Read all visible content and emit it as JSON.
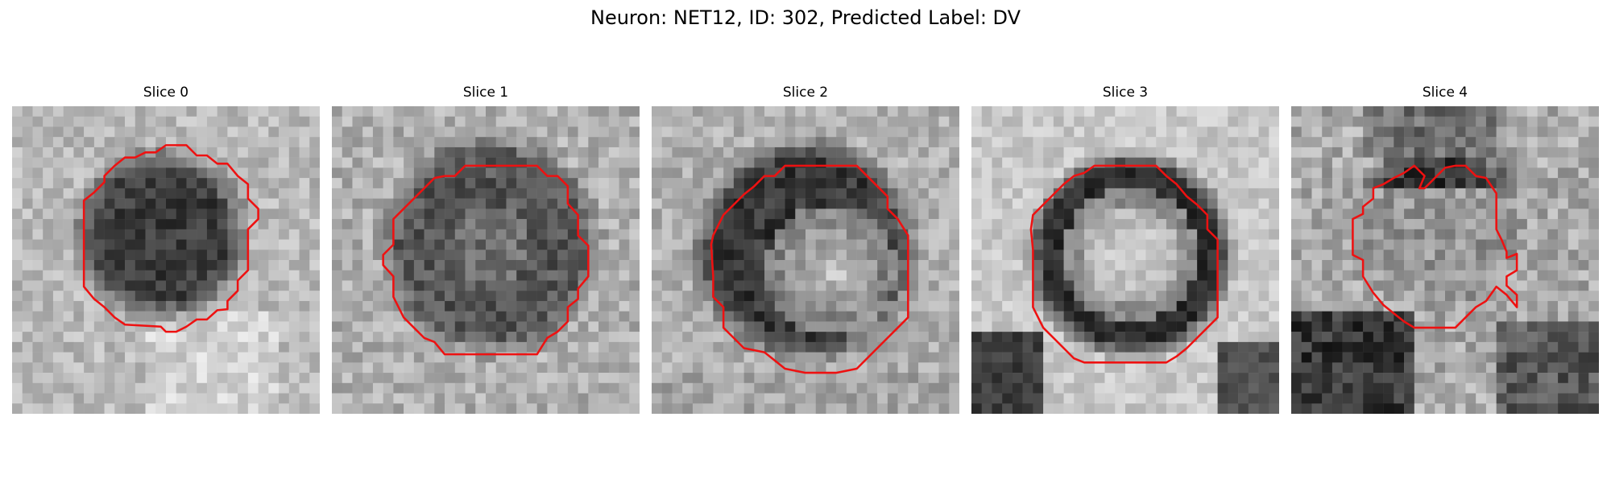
{
  "figure": {
    "title": "Neuron: NET12, ID: 302, Predicted Label: DV"
  },
  "panels": [
    {
      "title": "Slice 0",
      "style": "dark-center"
    },
    {
      "title": "Slice 1",
      "style": "dark-large"
    },
    {
      "title": "Slice 2",
      "style": "dark-ring-bright-center"
    },
    {
      "title": "Slice 3",
      "style": "ring-bright-center"
    },
    {
      "title": "Slice 4",
      "style": "irregular"
    }
  ],
  "colors": {
    "contour": "#ee1111",
    "background": "#ffffff"
  }
}
